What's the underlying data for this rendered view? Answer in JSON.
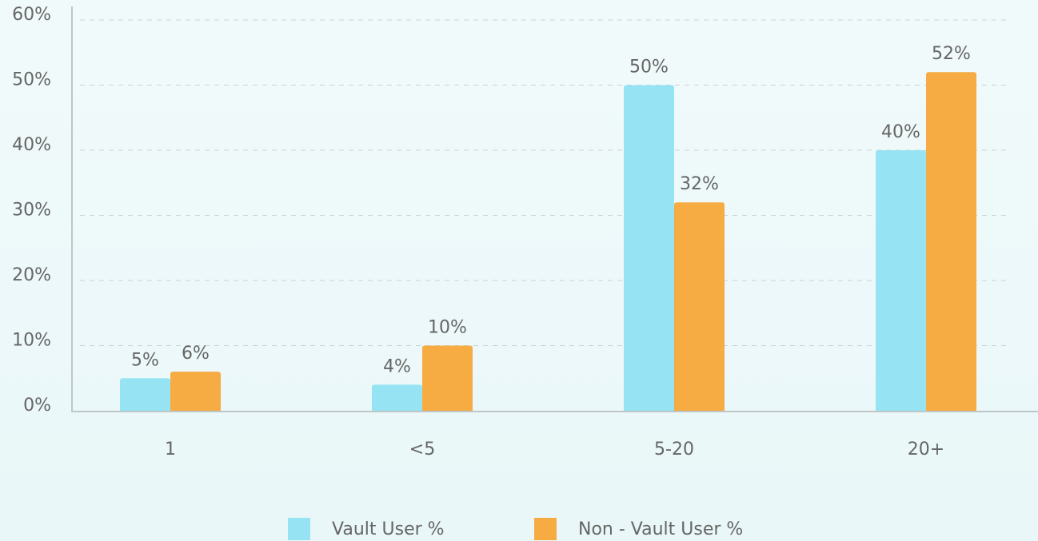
{
  "chart_data": {
    "type": "bar",
    "categories": [
      "1",
      "<5",
      "5-20",
      "20+"
    ],
    "series": [
      {
        "name": "Vault User %",
        "color": "#96e4f3",
        "values": [
          5,
          4,
          50,
          40
        ],
        "value_labels": [
          "5%",
          "4%",
          "50%",
          "40%"
        ]
      },
      {
        "name": "Non - Vault User %",
        "color": "#f6ab43",
        "values": [
          6,
          10,
          32,
          52
        ],
        "value_labels": [
          "6%",
          "10%",
          "32%",
          "52%"
        ]
      }
    ],
    "ylim": [
      0,
      60
    ],
    "yticks": [
      {
        "value": 0,
        "label": "0%"
      },
      {
        "value": 10,
        "label": "10%"
      },
      {
        "value": 20,
        "label": "20%"
      },
      {
        "value": 30,
        "label": "30%"
      },
      {
        "value": 40,
        "label": "40%"
      },
      {
        "value": 50,
        "label": "50%"
      },
      {
        "value": 60,
        "label": "60%"
      }
    ],
    "grid": true,
    "legend": "bottom"
  }
}
